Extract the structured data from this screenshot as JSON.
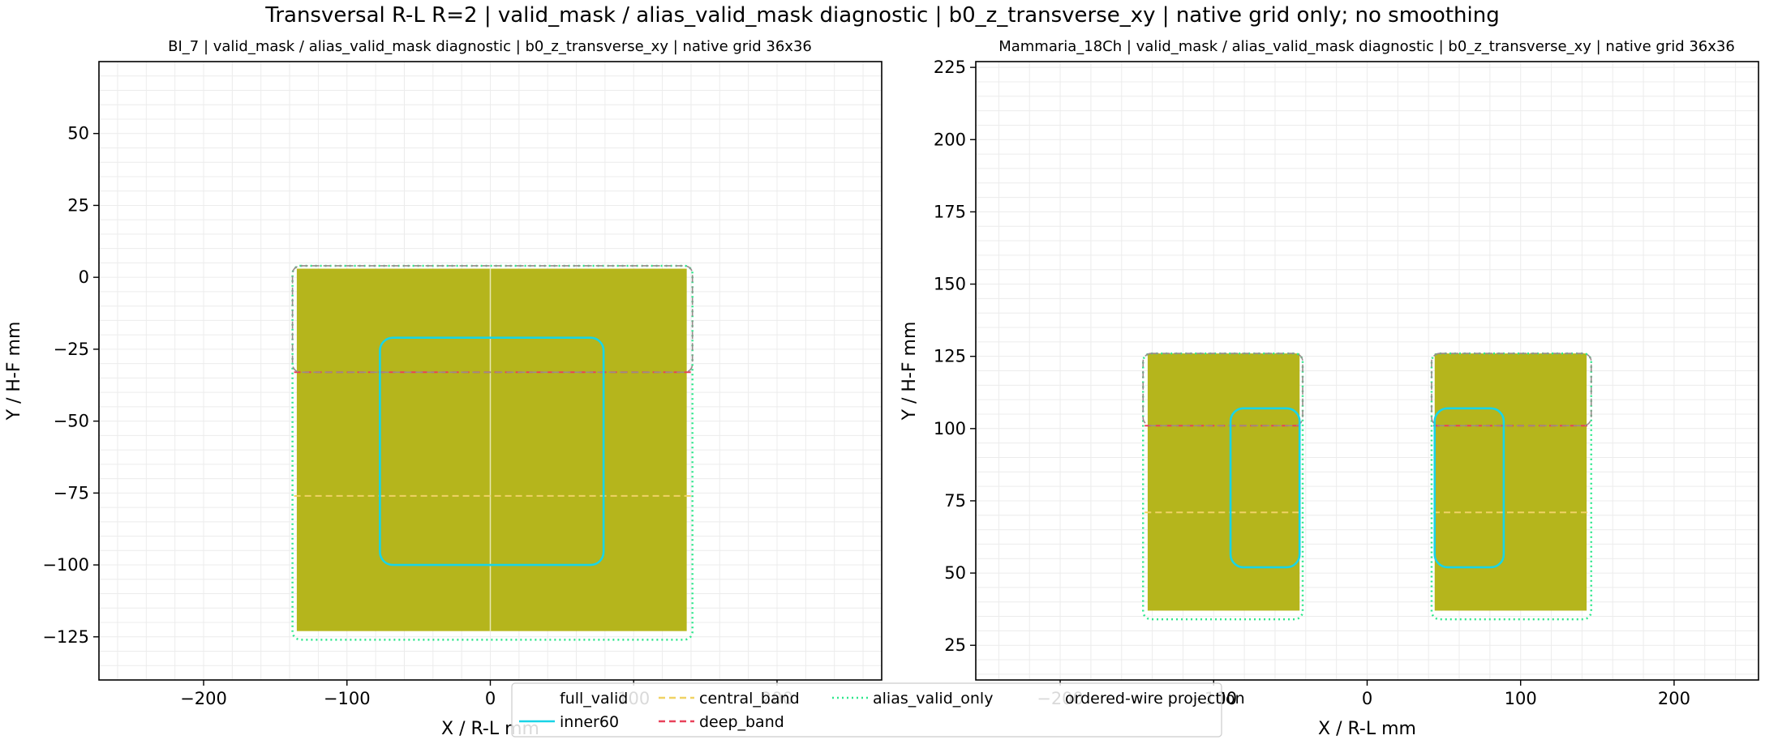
{
  "suptitle": "Transversal R-L R=2 | valid_mask / alias_valid_mask diagnostic | b0_z_transverse_xy | native grid only; no smoothing",
  "colors": {
    "fill": "#b5b51c",
    "inner60": "#19d4e6",
    "central_band": "#f0d264",
    "deep_band": "#e8415a",
    "alias_valid_only": "#2ee88c",
    "ordered_wire": "#bbbbbb",
    "grid": "#ececec"
  },
  "legend": {
    "items": [
      {
        "key": "full_valid",
        "label": "full_valid",
        "style": "none"
      },
      {
        "key": "inner60",
        "label": "inner60",
        "style": "solid"
      },
      {
        "key": "central_band",
        "label": "central_band",
        "style": "dashed"
      },
      {
        "key": "deep_band",
        "label": "deep_band",
        "style": "dashed"
      },
      {
        "key": "alias_valid_only",
        "label": "alias_valid_only",
        "style": "dotted"
      },
      {
        "key": "ordered_wire",
        "label": "ordered-wire projection",
        "style": "none"
      }
    ]
  },
  "chart_data": [
    {
      "type": "heatmap",
      "title": "BI_7 | valid_mask / alias_valid_mask diagnostic | b0_z_transverse_xy | native grid 36x36",
      "xlabel": "X / R-L mm",
      "ylabel": "Y / H-F mm",
      "xlim": [
        -273,
        273
      ],
      "ylim": [
        -140,
        75
      ],
      "xticks": [
        -200,
        -100,
        0,
        100,
        200
      ],
      "xtick_labels": [
        "−200",
        "−100",
        "0",
        "100",
        "200"
      ],
      "yticks": [
        50,
        25,
        0,
        -25,
        -50,
        -75,
        -100,
        -125
      ],
      "ytick_labels": [
        "50",
        "25",
        "0",
        "−25",
        "−50",
        "−75",
        "−100",
        "−125"
      ],
      "grid": true,
      "full_valid_regions": [
        {
          "x0": -135,
          "x1": 137,
          "y0": -123,
          "y1": 3
        }
      ],
      "center_line_x": 0,
      "inner60": [
        {
          "x0": -77,
          "x1": 79,
          "y0": -100,
          "y1": -21
        }
      ],
      "alias_valid_only": [
        {
          "x0": -138,
          "x1": 141,
          "y0": -126,
          "y1": 4
        }
      ],
      "central_band_y": -76,
      "deep_band_y": -33
    },
    {
      "type": "heatmap",
      "title": "Mammaria_18Ch | valid_mask / alias_valid_mask diagnostic | b0_z_transverse_xy | native grid 36x36",
      "xlabel": "X / R-L mm",
      "ylabel": "Y / H-F mm",
      "xlim": [
        -255,
        255
      ],
      "ylim": [
        13,
        227
      ],
      "xticks": [
        -200,
        -100,
        0,
        100,
        200
      ],
      "xtick_labels": [
        "−200",
        "−100",
        "0",
        "100",
        "200"
      ],
      "yticks": [
        225,
        200,
        175,
        150,
        125,
        100,
        75,
        50,
        25
      ],
      "ytick_labels": [
        "225",
        "200",
        "175",
        "150",
        "125",
        "100",
        "75",
        "50",
        "25"
      ],
      "grid": true,
      "full_valid_regions": [
        {
          "x0": -143,
          "x1": -44,
          "y0": 37,
          "y1": 126
        },
        {
          "x0": 44,
          "x1": 143,
          "y0": 37,
          "y1": 126
        }
      ],
      "inner60": [
        {
          "x0": -89,
          "x1": -44,
          "y0": 52,
          "y1": 107
        },
        {
          "x0": 44,
          "x1": 89,
          "y0": 52,
          "y1": 107
        }
      ],
      "alias_valid_only": [
        {
          "x0": -146,
          "x1": -42,
          "y0": 34,
          "y1": 126
        },
        {
          "x0": 42,
          "x1": 146,
          "y0": 34,
          "y1": 126
        }
      ],
      "central_band_y": 71,
      "deep_band_y": 101
    }
  ]
}
